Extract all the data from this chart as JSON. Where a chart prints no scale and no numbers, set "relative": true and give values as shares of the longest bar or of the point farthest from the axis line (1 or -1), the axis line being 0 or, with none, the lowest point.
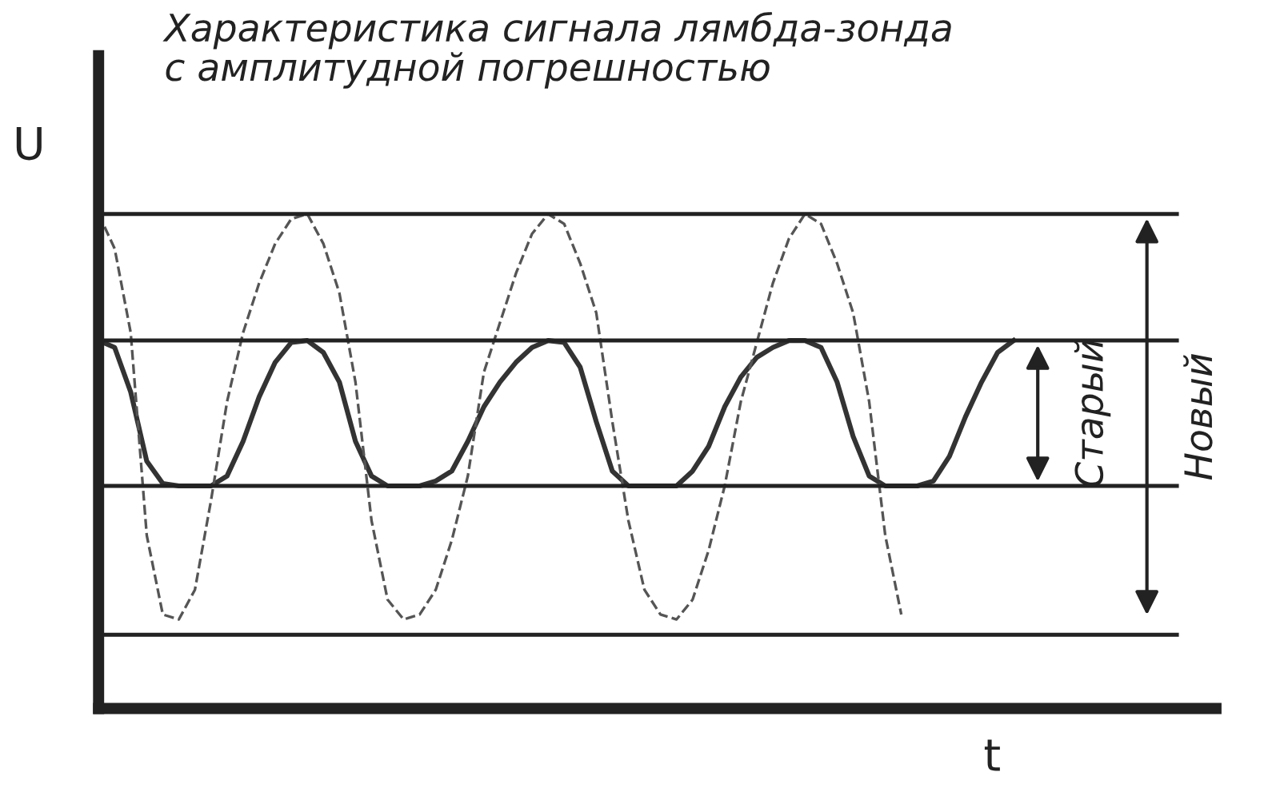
{
  "chart_data": {
    "type": "line",
    "relative": true,
    "title": "Характеристика сигнала лямбда-зонда\nс амплитудной погрешностью",
    "xlabel": "t",
    "ylabel": "U",
    "grid": false,
    "legend": false,
    "categories": [
      null,
      null,
      null,
      null,
      null,
      null,
      null,
      null,
      null,
      null,
      null,
      null,
      null,
      null,
      null,
      null,
      null,
      null,
      null,
      null,
      null,
      null,
      null,
      null,
      null,
      null,
      null,
      null,
      null,
      null,
      null,
      null,
      null,
      null,
      null,
      null,
      null,
      null,
      null,
      null,
      null,
      null,
      null,
      null,
      null,
      null,
      null,
      null,
      null,
      null,
      null,
      null,
      null,
      null,
      null,
      null,
      null,
      null
    ],
    "series": [
      {
        "color": "#333333",
        "line_style": "solid",
        "values": [
          0.744,
          0.73,
          0.64,
          0.5,
          0.455,
          0.45,
          0.45,
          0.45,
          0.47,
          0.54,
          0.63,
          0.7,
          0.74,
          0.744,
          0.72,
          0.66,
          0.54,
          0.47,
          0.45,
          0.45,
          0.45,
          0.46,
          0.48,
          0.54,
          0.61,
          0.66,
          0.7,
          0.73,
          0.744,
          0.74,
          0.69,
          0.58,
          0.48,
          0.45,
          0.45,
          0.45,
          0.45,
          0.48,
          0.53,
          0.61,
          0.67,
          0.71,
          0.73,
          0.744,
          0.744,
          0.73,
          0.66,
          0.55,
          0.47,
          0.45,
          0.45,
          0.45,
          0.46,
          0.51,
          0.59,
          0.66,
          0.72,
          0.744
        ]
      },
      {
        "color": "#555555",
        "line_style": "dashed",
        "values": [
          1.0,
          0.93,
          0.76,
          0.35,
          0.19,
          0.18,
          0.24,
          0.42,
          0.62,
          0.76,
          0.86,
          0.94,
          0.99,
          1.0,
          0.94,
          0.84,
          0.66,
          0.38,
          0.22,
          0.18,
          0.19,
          0.24,
          0.34,
          0.47,
          0.68,
          0.78,
          0.88,
          0.96,
          1.0,
          0.98,
          0.9,
          0.8,
          0.58,
          0.38,
          0.24,
          0.19,
          0.18,
          0.22,
          0.32,
          0.45,
          0.62,
          0.74,
          0.86,
          0.95,
          1.0,
          0.98,
          0.9,
          0.8,
          0.62,
          0.35,
          0.19,
          null,
          null,
          null,
          null,
          null,
          null,
          null
        ]
      }
    ],
    "ref_lines": [
      {
        "axis": "y",
        "value": 1.0
      },
      {
        "axis": "y",
        "value": 0.744
      },
      {
        "axis": "y",
        "value": 0.45
      },
      {
        "axis": "y",
        "value": 0.149
      }
    ],
    "annotations": [
      "Старый",
      "Новый"
    ]
  }
}
